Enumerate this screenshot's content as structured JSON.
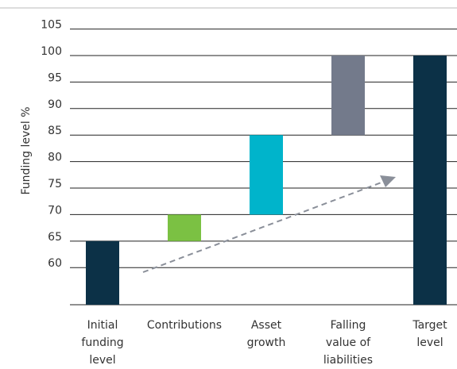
{
  "chart_data": {
    "type": "waterfall",
    "y_label": "Funding level %",
    "categories": [
      [
        "Initial",
        "funding",
        "level"
      ],
      [
        "Contributions"
      ],
      [
        "Asset",
        "growth"
      ],
      [
        "Falling",
        "value of",
        "liabilities"
      ],
      [
        "Target",
        "level"
      ]
    ],
    "values": [
      65,
      5,
      15,
      15,
      100
    ],
    "measure": [
      "absolute",
      "relative",
      "relative",
      "relative",
      "total"
    ],
    "colors": [
      "#0c3147",
      "#7bc143",
      "#00b4cb",
      "#737a8b",
      "#0c3147"
    ],
    "ylim": [
      53,
      105
    ],
    "yticks": [
      60,
      65,
      70,
      75,
      80,
      85,
      90,
      95,
      100,
      105
    ],
    "grid": true
  }
}
